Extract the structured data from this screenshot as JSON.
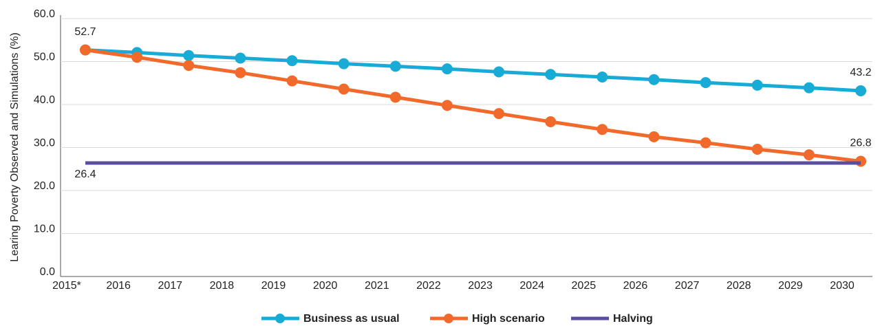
{
  "chart_data": {
    "type": "line",
    "y_label": "Learing Poverty Observed and Simulations  (%)",
    "categories": [
      "2015*",
      "2016",
      "2017",
      "2018",
      "2019",
      "2020",
      "2021",
      "2022",
      "2023",
      "2024",
      "2025",
      "2026",
      "2027",
      "2028",
      "2029",
      "2030"
    ],
    "series": [
      {
        "name": "Business as usual",
        "color": "#17abd6",
        "markers": true,
        "values": [
          52.7,
          52.1,
          51.4,
          50.8,
          50.2,
          49.5,
          48.9,
          48.3,
          47.6,
          47.0,
          46.4,
          45.8,
          45.1,
          44.5,
          43.9,
          43.2
        ]
      },
      {
        "name": "High scenario",
        "color": "#f26a2b",
        "markers": true,
        "values": [
          52.7,
          51.0,
          49.1,
          47.4,
          45.5,
          43.6,
          41.7,
          39.8,
          37.9,
          36.0,
          34.2,
          32.5,
          31.1,
          29.6,
          28.3,
          26.8
        ]
      },
      {
        "name": "Halving",
        "color": "#5a4e9e",
        "markers": false,
        "values": [
          26.4,
          26.4,
          26.4,
          26.4,
          26.4,
          26.4,
          26.4,
          26.4,
          26.4,
          26.4,
          26.4,
          26.4,
          26.4,
          26.4,
          26.4,
          26.4
        ]
      }
    ],
    "ylim": [
      0,
      60
    ],
    "yticks": [
      {
        "value": 0,
        "label": "0.0"
      },
      {
        "value": 10,
        "label": "10.0"
      },
      {
        "value": 20,
        "label": "20.0"
      },
      {
        "value": 30,
        "label": "30.0"
      },
      {
        "value": 40,
        "label": "40.0"
      },
      {
        "value": 50,
        "label": "50.0"
      },
      {
        "value": 60,
        "label": "60.0"
      }
    ],
    "grid": true,
    "legend": "bottom"
  }
}
